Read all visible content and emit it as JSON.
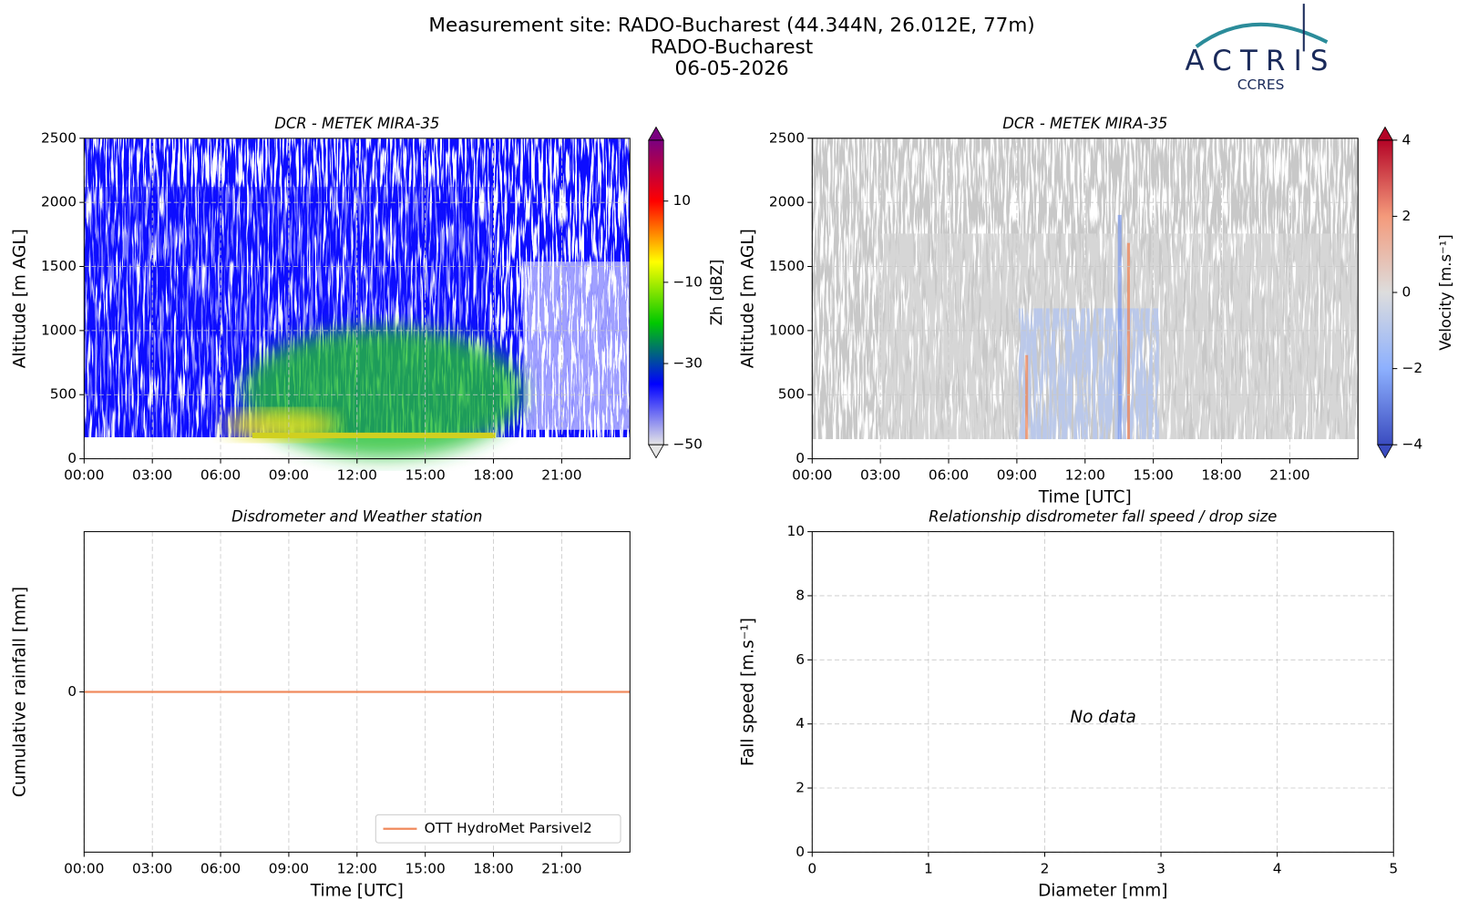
{
  "header": {
    "title_lines": [
      "Measurement site: RADO-Bucharest (44.344N, 26.012E, 77m)",
      "RADO-Bucharest",
      "06-05-2026"
    ],
    "logo": {
      "name": "ACTRIS",
      "subtitle": "CCRES"
    }
  },
  "chart_data": [
    {
      "type": "heatmap",
      "title": "DCR - METEK MIRA-35",
      "ylabel": "Altitude [m AGL]",
      "xlim": [
        0,
        24
      ],
      "xticks": [
        {
          "value": 0,
          "label": "00:00"
        },
        {
          "value": 3,
          "label": "03:00"
        },
        {
          "value": 6,
          "label": "06:00"
        },
        {
          "value": 9,
          "label": "09:00"
        },
        {
          "value": 12,
          "label": "12:00"
        },
        {
          "value": 15,
          "label": "15:00"
        },
        {
          "value": 18,
          "label": "18:00"
        },
        {
          "value": 21,
          "label": "21:00"
        }
      ],
      "ylim": [
        0,
        2500
      ],
      "yticks": [
        0,
        500,
        1000,
        1500,
        2000,
        2500
      ],
      "grid": true,
      "colorbar": {
        "label": "Zh [dBZ]",
        "lim": [
          -50,
          25
        ],
        "ticks": [
          {
            "value": -50,
            "label": "−50"
          },
          {
            "value": -30,
            "label": "−30"
          },
          {
            "value": -10,
            "label": "−10"
          },
          10
        ],
        "colors": [
          "#e6e6e6",
          "#0000ff",
          "#00c800",
          "#ffff00",
          "#ff0000",
          "#7a0080"
        ]
      }
    },
    {
      "type": "heatmap",
      "title": "DCR - METEK MIRA-35",
      "ylabel": "Altitude [m AGL]",
      "xlabel": "Time [UTC]",
      "xlim": [
        0,
        24
      ],
      "xticks": [
        {
          "value": 0,
          "label": "00:00"
        },
        {
          "value": 3,
          "label": "03:00"
        },
        {
          "value": 6,
          "label": "06:00"
        },
        {
          "value": 9,
          "label": "09:00"
        },
        {
          "value": 12,
          "label": "12:00"
        },
        {
          "value": 15,
          "label": "15:00"
        },
        {
          "value": 18,
          "label": "18:00"
        },
        {
          "value": 21,
          "label": "21:00"
        }
      ],
      "ylim": [
        0,
        2500
      ],
      "yticks": [
        0,
        500,
        1000,
        1500,
        2000,
        2500
      ],
      "grid": true,
      "colorbar": {
        "label": "Velocity [m.s⁻¹]",
        "lim": [
          -4,
          4
        ],
        "ticks": [
          {
            "value": -4,
            "label": "−4"
          },
          {
            "value": -2,
            "label": "−2"
          },
          0,
          2,
          4
        ],
        "colors": [
          "#3b4cc0",
          "#8db0fe",
          "#dddddd",
          "#f49a7b",
          "#b40426"
        ]
      }
    },
    {
      "type": "line",
      "title": "Disdrometer and Weather station",
      "xlabel": "Time [UTC]",
      "ylabel": "Cumulative rainfall [mm]",
      "xlim": [
        0,
        24
      ],
      "xticks": [
        {
          "value": 0,
          "label": "00:00"
        },
        {
          "value": 3,
          "label": "03:00"
        },
        {
          "value": 6,
          "label": "06:00"
        },
        {
          "value": 9,
          "label": "09:00"
        },
        {
          "value": 12,
          "label": "12:00"
        },
        {
          "value": 15,
          "label": "15:00"
        },
        {
          "value": 18,
          "label": "18:00"
        },
        {
          "value": 21,
          "label": "21:00"
        }
      ],
      "ylim": [
        -0.055,
        0.055
      ],
      "yticks": [
        0
      ],
      "grid": true,
      "legend": "lower right",
      "x": [
        0,
        24
      ],
      "series": [
        {
          "name": "OTT HydroMet Parsivel2",
          "color": "#f08a5d",
          "values": [
            0,
            0
          ]
        }
      ]
    },
    {
      "type": "scatter",
      "title": "Relationship disdrometer fall speed / drop size",
      "xlabel": "Diameter [mm]",
      "ylabel": "Fall speed [m.s⁻¹]",
      "xlim": [
        0,
        5
      ],
      "xticks": [
        0,
        1,
        2,
        3,
        4,
        5
      ],
      "ylim": [
        0,
        10
      ],
      "yticks": [
        0,
        2,
        4,
        6,
        8,
        10
      ],
      "grid": true,
      "annotation": "No data"
    }
  ]
}
